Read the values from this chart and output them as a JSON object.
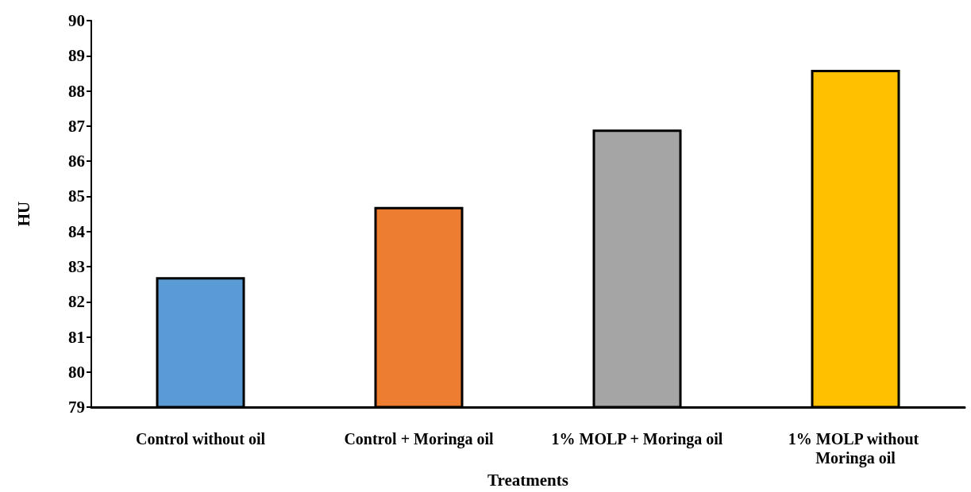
{
  "chart_data": {
    "type": "bar",
    "xlabel": "Treatments",
    "ylabel": "HU",
    "categories": [
      "Control without oil",
      "Control + Moringa oil",
      "1% MOLP + Moringa oil",
      "1% MOLP without Moringa oil"
    ],
    "values": [
      82.7,
      84.7,
      86.9,
      88.6
    ],
    "colors": [
      "#5b9bd5",
      "#ed7d31",
      "#a5a5a5",
      "#ffc000"
    ],
    "ylim": [
      79,
      90
    ],
    "yticks": [
      79,
      80,
      81,
      82,
      83,
      84,
      85,
      86,
      87,
      88,
      89,
      90
    ],
    "grid": false
  }
}
